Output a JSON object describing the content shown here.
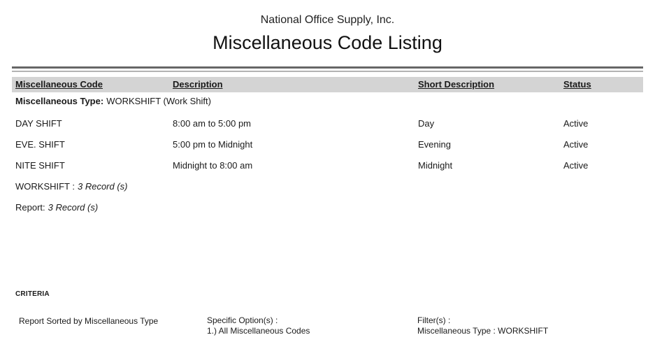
{
  "header": {
    "company": "National Office Supply, Inc.",
    "title": "Miscellaneous Code Listing"
  },
  "table": {
    "columns": [
      "Miscellaneous Code",
      "Description",
      "Short Description",
      "Status"
    ],
    "group": {
      "label": "Miscellaneous Type:",
      "value": "WORKSHIFT (Work Shift)"
    },
    "rows": [
      {
        "code": "DAY SHIFT",
        "description": "8:00 am to 5:00 pm",
        "short_description": "Day",
        "status": "Active"
      },
      {
        "code": "EVE. SHIFT",
        "description": "5:00 pm to Midnight",
        "short_description": "Evening",
        "status": "Active"
      },
      {
        "code": "NITE SHIFT",
        "description": "Midnight to 8:00 am",
        "short_description": "Midnight",
        "status": "Active"
      }
    ],
    "group_total": {
      "label": "WORKSHIFT :",
      "value": "3 Record (s)"
    },
    "report_total": {
      "label": "Report:",
      "value": "3 Record (s)"
    }
  },
  "criteria": {
    "heading": "CRITERIA",
    "sort_text": "Report Sorted by Miscellaneous Type",
    "options_label": "Specific Option(s) :",
    "options_value": "1.) All Miscellaneous Codes",
    "filters_label": "Filter(s) :",
    "filters_value": "Miscellaneous Type : WORKSHIFT"
  },
  "colors": {
    "header_band": "#d4d4d4",
    "rule_dark": "#666666",
    "rule_light": "#b3b3b3",
    "text": "#1a1a1a"
  }
}
